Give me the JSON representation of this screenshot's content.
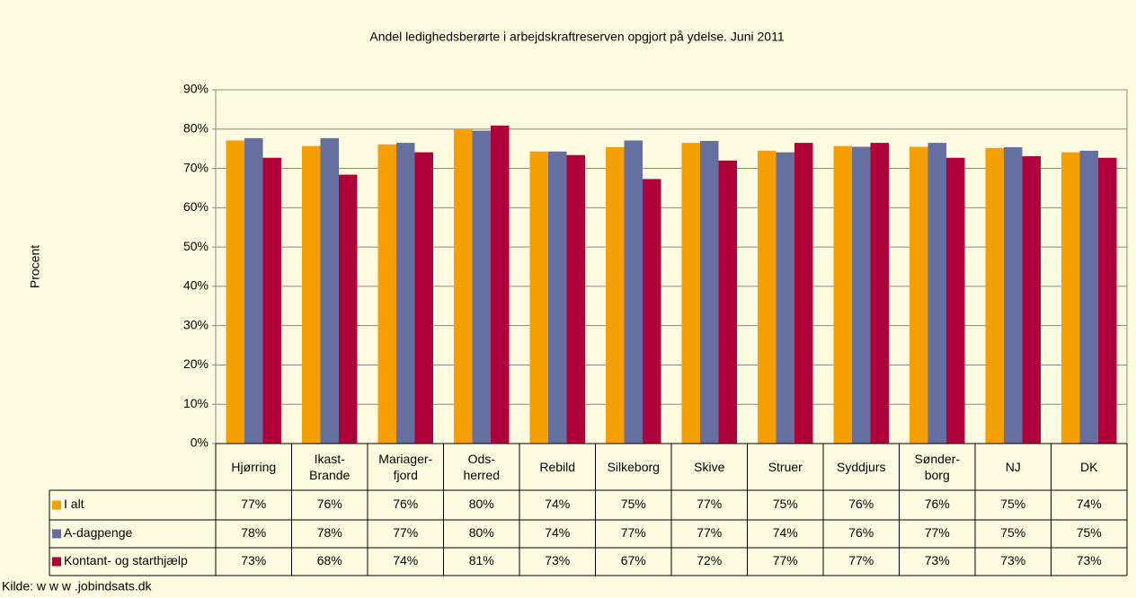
{
  "chart_data": {
    "type": "bar",
    "title": "Andel ledighedsberørte i arbejdskraftreserven opgjort på ydelse. Juni 2011",
    "y_label": "Procent",
    "source": "Kilde: w w w .jobindsats.dk",
    "categories": [
      "Hjørring",
      "Ikast-\nBrande",
      "Mariager-\nfjord",
      "Ods-\nherred",
      "Rebild",
      "Silkeborg",
      "Skive",
      "Struer",
      "Syddjurs",
      "Sønder-\nborg",
      "NJ",
      "DK"
    ],
    "series": [
      {
        "name": "I alt",
        "color": "#f5a000",
        "values": [
          77.1,
          75.7,
          76.1,
          79.9,
          74.3,
          75.4,
          76.5,
          74.5,
          75.7,
          75.5,
          75.2,
          74.1
        ],
        "value_labels": [
          "77%",
          "76%",
          "76%",
          "80%",
          "74%",
          "75%",
          "77%",
          "75%",
          "76%",
          "76%",
          "75%",
          "74%"
        ]
      },
      {
        "name": "A-dagpenge",
        "color": "#6670a0",
        "values": [
          77.7,
          77.7,
          76.5,
          79.6,
          74.3,
          77.1,
          77.0,
          74.1,
          75.5,
          76.5,
          75.4,
          74.5
        ],
        "value_labels": [
          "78%",
          "78%",
          "77%",
          "80%",
          "74%",
          "77%",
          "77%",
          "74%",
          "76%",
          "77%",
          "75%",
          "75%"
        ]
      },
      {
        "name": "Kontant- og starthjælp",
        "color": "#b0003a",
        "values": [
          72.7,
          68.4,
          74.1,
          80.9,
          73.4,
          67.3,
          72.0,
          76.5,
          76.5,
          72.7,
          73.1,
          72.7
        ],
        "value_labels": [
          "73%",
          "68%",
          "74%",
          "81%",
          "73%",
          "67%",
          "72%",
          "77%",
          "77%",
          "73%",
          "73%",
          "73%"
        ]
      }
    ],
    "ylim": [
      0,
      90
    ],
    "yticks": [
      {
        "value": 0,
        "label": "0%"
      },
      {
        "value": 10,
        "label": "10%"
      },
      {
        "value": 20,
        "label": "20%"
      },
      {
        "value": 30,
        "label": "30%"
      },
      {
        "value": 40,
        "label": "40%"
      },
      {
        "value": 50,
        "label": "50%"
      },
      {
        "value": 60,
        "label": "60%"
      },
      {
        "value": 70,
        "label": "70%"
      },
      {
        "value": 80,
        "label": "80%"
      },
      {
        "value": 90,
        "label": "90%"
      }
    ],
    "grid": true,
    "legend": "table"
  }
}
